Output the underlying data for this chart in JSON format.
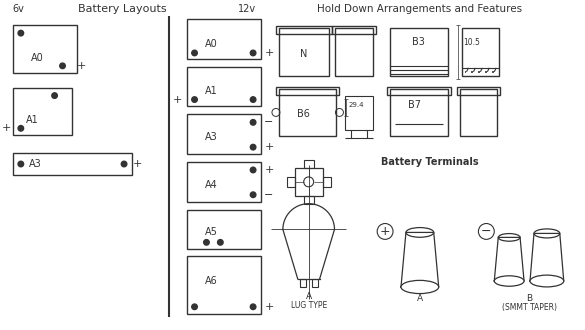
{
  "title_left": "Battery Layouts",
  "title_right": "Hold Down Arrangements and Features",
  "label_6v": "6v",
  "label_12v": "12v",
  "bg_color": "#ffffff",
  "lc": "#333333"
}
